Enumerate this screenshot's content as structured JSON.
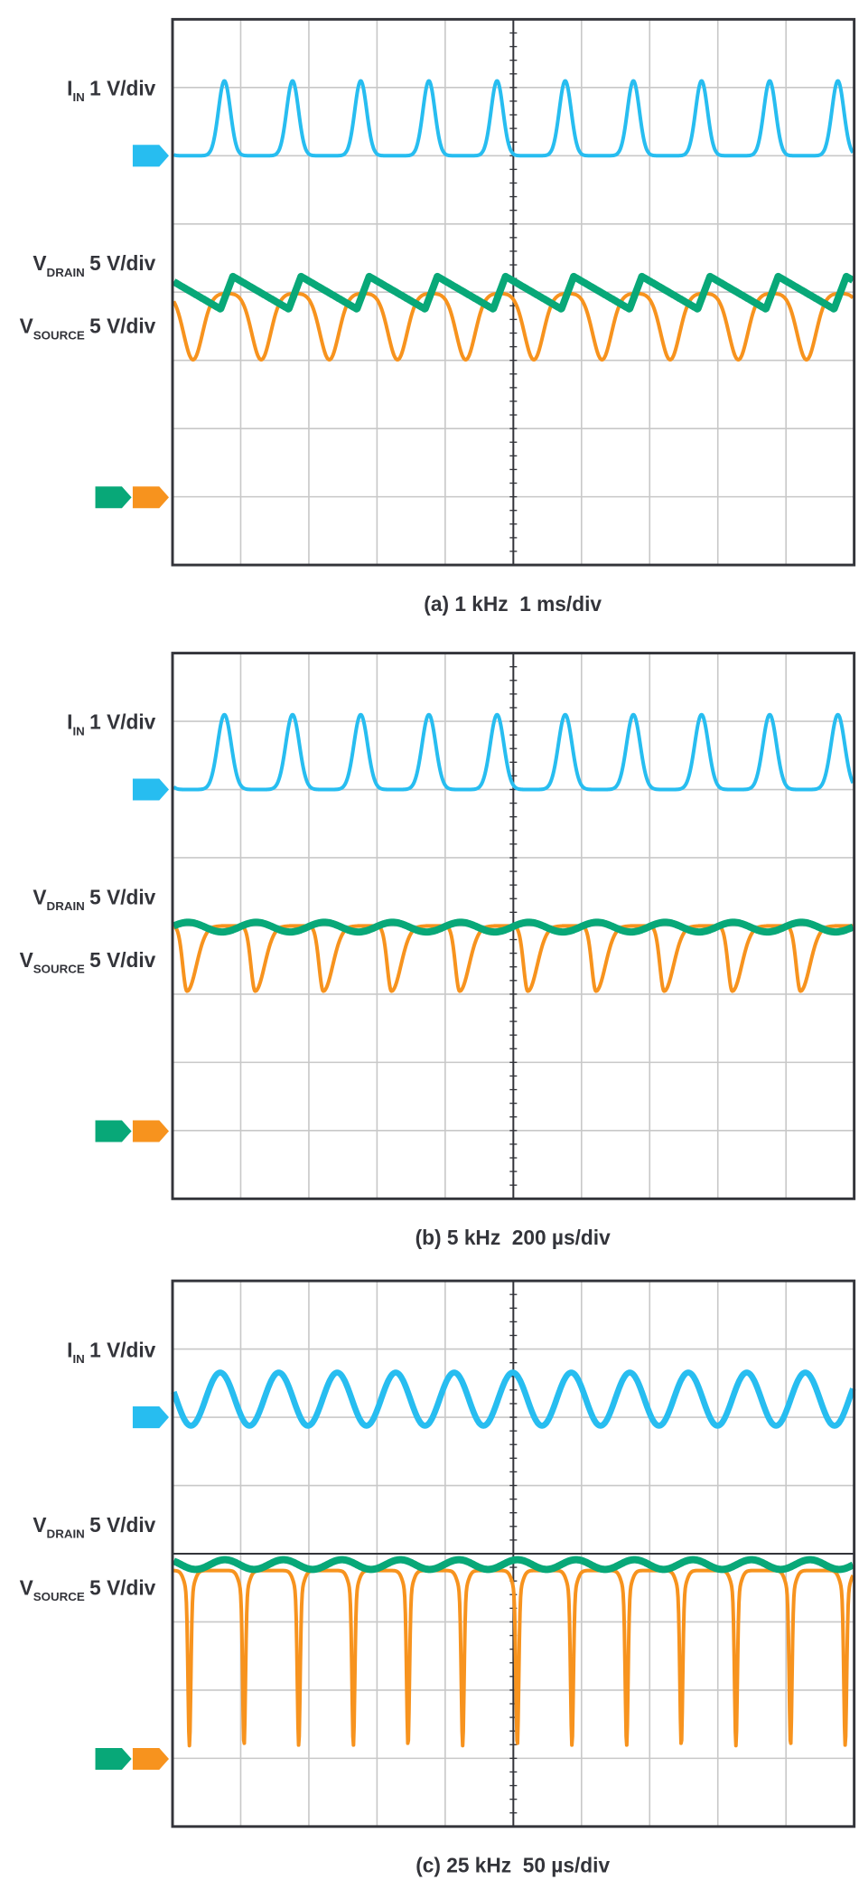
{
  "panels": [
    {
      "caption": "(a) 1 kHz  1 ms/div",
      "channels": [
        {
          "symbol": "I",
          "subscript": "IN",
          "scale": "1 V/div"
        },
        {
          "symbol": "V",
          "subscript": "DRAIN",
          "scale": "5 V/div"
        },
        {
          "symbol": "V",
          "subscript": "SOURCE",
          "scale": "5 V/div"
        }
      ]
    },
    {
      "caption": "(b) 5 kHz  200 µs/div",
      "channels": [
        {
          "symbol": "I",
          "subscript": "IN",
          "scale": "1 V/div"
        },
        {
          "symbol": "V",
          "subscript": "DRAIN",
          "scale": "5 V/div"
        },
        {
          "symbol": "V",
          "subscript": "SOURCE",
          "scale": "5 V/div"
        }
      ]
    },
    {
      "caption": "(c) 25 kHz  50 µs/div",
      "channels": [
        {
          "symbol": "I",
          "subscript": "IN",
          "scale": "1 V/div"
        },
        {
          "symbol": "V",
          "subscript": "DRAIN",
          "scale": "5 V/div"
        },
        {
          "symbol": "V",
          "subscript": "SOURCE",
          "scale": "5 V/div"
        }
      ]
    }
  ]
}
